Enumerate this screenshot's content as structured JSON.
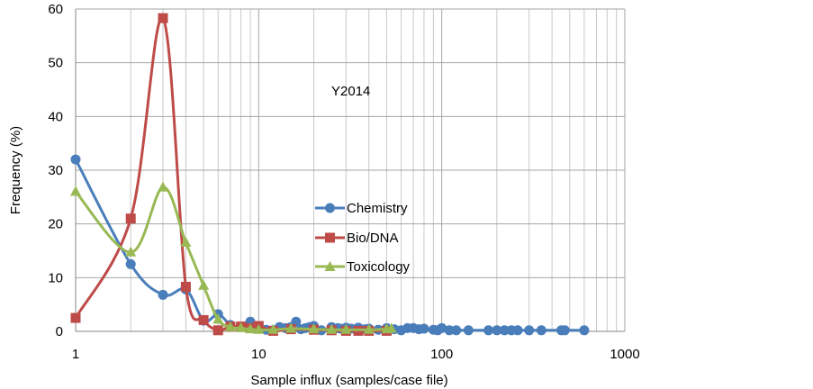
{
  "chart_data": {
    "type": "scatter",
    "x_scale": "log",
    "xlabel": "Sample influx (samples/case file)",
    "ylabel": "Frequency (%)",
    "annotation": "Y2014",
    "xlim": [
      1,
      1000
    ],
    "ylim": [
      0,
      60
    ],
    "x_ticks": [
      {
        "value": 1,
        "label": "1"
      },
      {
        "value": 10,
        "label": "10"
      },
      {
        "value": 100,
        "label": "100"
      },
      {
        "value": 1000,
        "label": "1000"
      }
    ],
    "y_ticks": [
      {
        "value": 0,
        "label": "0"
      },
      {
        "value": 10,
        "label": "10"
      },
      {
        "value": 20,
        "label": "20"
      },
      {
        "value": 30,
        "label": "30"
      },
      {
        "value": 40,
        "label": "40"
      },
      {
        "value": 50,
        "label": "50"
      },
      {
        "value": 60,
        "label": "60"
      }
    ],
    "grid": true,
    "legend_position": "center",
    "series": [
      {
        "name": "Chemistry",
        "color": "#4a7ebb",
        "marker": "circle",
        "points": [
          [
            1,
            32
          ],
          [
            2,
            12.5
          ],
          [
            3,
            6.8
          ],
          [
            4,
            7.8
          ],
          [
            5,
            2
          ],
          [
            6,
            3.2
          ],
          [
            7,
            1.2
          ],
          [
            8,
            0.8
          ],
          [
            9,
            1.8
          ],
          [
            10,
            0.6
          ],
          [
            11,
            0.3
          ],
          [
            12,
            0.2
          ],
          [
            13,
            0.8
          ],
          [
            14,
            0.6
          ],
          [
            15,
            0.8
          ],
          [
            16,
            1.8
          ],
          [
            17,
            0.4
          ],
          [
            18,
            0.6
          ],
          [
            19,
            0.8
          ],
          [
            20,
            1
          ],
          [
            22,
            0.2
          ],
          [
            25,
            0.8
          ],
          [
            27,
            0.6
          ],
          [
            28,
            0.5
          ],
          [
            30,
            0.7
          ],
          [
            32,
            0.5
          ],
          [
            35,
            0.7
          ],
          [
            38,
            0.4
          ],
          [
            40,
            0.5
          ],
          [
            45,
            0.3
          ],
          [
            50,
            0.6
          ],
          [
            55,
            0.4
          ],
          [
            60,
            0.2
          ],
          [
            65,
            0.6
          ],
          [
            70,
            0.6
          ],
          [
            75,
            0.4
          ],
          [
            80,
            0.5
          ],
          [
            90,
            0.3
          ],
          [
            95,
            0.2
          ],
          [
            100,
            0.6
          ],
          [
            110,
            0.2
          ],
          [
            120,
            0.2
          ],
          [
            140,
            0.2
          ],
          [
            180,
            0.2
          ],
          [
            200,
            0.2
          ],
          [
            220,
            0.2
          ],
          [
            240,
            0.2
          ],
          [
            260,
            0.2
          ],
          [
            300,
            0.2
          ],
          [
            350,
            0.2
          ],
          [
            450,
            0.2
          ],
          [
            470,
            0.2
          ],
          [
            600,
            0.2
          ]
        ]
      },
      {
        "name": "Bio/DNA",
        "color": "#be4b48",
        "marker": "square",
        "points": [
          [
            1,
            2.5
          ],
          [
            2,
            21
          ],
          [
            3,
            58.3
          ],
          [
            4,
            8.3
          ],
          [
            5,
            2.1
          ],
          [
            6,
            0.2
          ],
          [
            7,
            0.9
          ],
          [
            8,
            0.9
          ],
          [
            9,
            0.6
          ],
          [
            10,
            1
          ],
          [
            12,
            0.1
          ],
          [
            15,
            0.4
          ],
          [
            20,
            0.3
          ],
          [
            25,
            0.2
          ],
          [
            30,
            0.1
          ],
          [
            35,
            0.1
          ],
          [
            40,
            0.1
          ],
          [
            50,
            0.1
          ]
        ]
      },
      {
        "name": "Toxicology",
        "color": "#98b954",
        "marker": "triangle",
        "points": [
          [
            1,
            26
          ],
          [
            2,
            14.7
          ],
          [
            3,
            26.8
          ],
          [
            4,
            16.5
          ],
          [
            5,
            8.5
          ],
          [
            6,
            2.2
          ],
          [
            7,
            0.8
          ],
          [
            8,
            0.6
          ],
          [
            9,
            0.4
          ],
          [
            10,
            0.3
          ],
          [
            12,
            0.3
          ],
          [
            15,
            0.5
          ],
          [
            20,
            0.4
          ],
          [
            25,
            0.3
          ],
          [
            30,
            0.3
          ],
          [
            40,
            0.3
          ],
          [
            50,
            0.4
          ],
          [
            53,
            0.5
          ]
        ]
      }
    ]
  }
}
